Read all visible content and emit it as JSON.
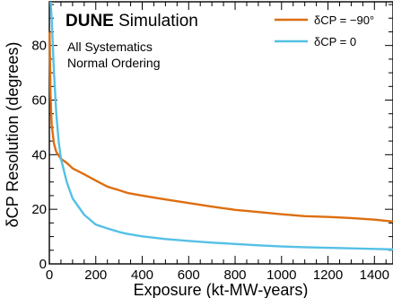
{
  "chart_data": {
    "type": "line",
    "title_bold": "DUNE",
    "title_rest": " Simulation",
    "notes": [
      "All Systematics",
      "Normal Ordering"
    ],
    "xlabel": "Exposure (kt-MW-years)",
    "ylabel": "δCP Resolution (degrees)",
    "xlim": [
      0,
      1480
    ],
    "ylim": [
      0,
      96
    ],
    "xticks": [
      0,
      200,
      400,
      600,
      800,
      1000,
      1200,
      1400
    ],
    "yticks": [
      0,
      20,
      40,
      60,
      80
    ],
    "grid": false,
    "legend_position": "top-right",
    "series": [
      {
        "name": "δCP = −90°",
        "color": "#dd6e10",
        "x": [
          1,
          5,
          10,
          20,
          30,
          50,
          75,
          100,
          150,
          200,
          250,
          300,
          336,
          400,
          500,
          600,
          700,
          800,
          900,
          1000,
          1100,
          1200,
          1300,
          1400,
          1480
        ],
        "y": [
          85,
          62,
          51,
          44,
          41,
          38.5,
          37,
          35,
          32.8,
          30.5,
          28.3,
          27,
          26,
          25,
          23.6,
          22.3,
          21,
          19.8,
          19,
          18.2,
          17.5,
          17.2,
          16.8,
          16.2,
          15.5
        ]
      },
      {
        "name": "δCP = 0",
        "color": "#55c0e6",
        "x": [
          5,
          10,
          15,
          20,
          30,
          40,
          50,
          75,
          100,
          150,
          200,
          250,
          300,
          336,
          400,
          500,
          600,
          700,
          800,
          900,
          1000,
          1100,
          1200,
          1300,
          1400,
          1480
        ],
        "y": [
          96,
          90,
          80,
          70,
          55,
          45,
          38.5,
          30,
          24,
          18,
          14.4,
          13,
          11.7,
          11,
          10.1,
          9.1,
          8.4,
          7.8,
          7.3,
          6.8,
          6.4,
          6.1,
          5.9,
          5.7,
          5.5,
          5.3
        ]
      }
    ]
  }
}
